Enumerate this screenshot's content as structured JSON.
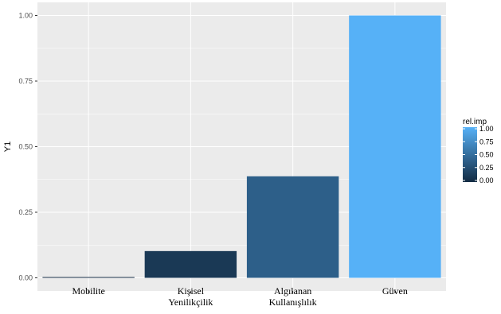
{
  "chart_data": {
    "type": "bar",
    "categories": [
      "Mobilite",
      "Kişisel\nYenilikçilik",
      "Algılanan\nKullanışlılık",
      "Güven"
    ],
    "values": [
      0.002,
      0.102,
      0.387,
      1.0
    ],
    "fill_values": [
      0.0,
      0.102,
      0.387,
      1.0
    ],
    "ylabel": "Y1",
    "xlabel": "",
    "ylim": [
      0,
      1
    ],
    "yticks": [
      "0.00",
      "0.25",
      "0.50",
      "0.75",
      "1.00"
    ],
    "grid": true,
    "legend": {
      "title": "rel.imp",
      "labels": [
        "1.00",
        "0.75",
        "0.50",
        "0.25",
        "0.00"
      ],
      "position": "right",
      "low_color": "#132B43",
      "high_color": "#56B1F7"
    },
    "panel_background": "#EBEBEB"
  }
}
